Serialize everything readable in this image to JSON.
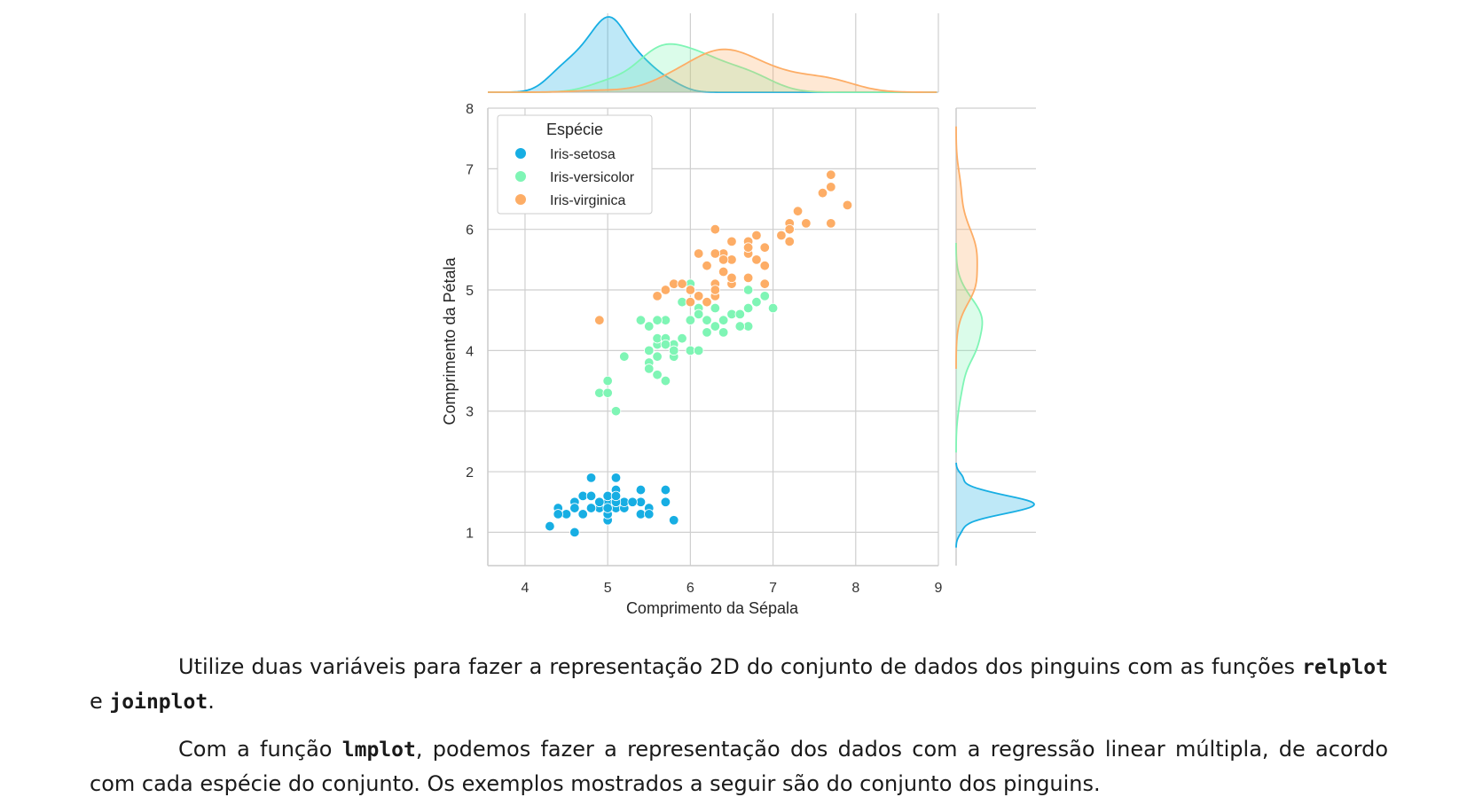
{
  "chart_data": {
    "type": "scatter",
    "subtype": "jointplot-kde",
    "xlabel": "Comprimento da Sépala",
    "ylabel": "Comprimento da Pétala",
    "xlim": [
      3.55,
      9.0
    ],
    "ylim": [
      0.45,
      8.0
    ],
    "xticks": [
      4,
      5,
      6,
      7,
      8,
      9
    ],
    "yticks": [
      1,
      2,
      3,
      4,
      5,
      6,
      7,
      8
    ],
    "grid": true,
    "legend": {
      "title": "Espécie",
      "placement": "top-left"
    },
    "marginals": "kde",
    "series": [
      {
        "name": "Iris-setosa",
        "color": "#17aee3",
        "points": [
          [
            5.1,
            1.4
          ],
          [
            4.9,
            1.4
          ],
          [
            4.7,
            1.3
          ],
          [
            4.6,
            1.5
          ],
          [
            5.0,
            1.4
          ],
          [
            5.4,
            1.7
          ],
          [
            4.6,
            1.4
          ],
          [
            5.0,
            1.5
          ],
          [
            4.4,
            1.4
          ],
          [
            4.9,
            1.5
          ],
          [
            5.4,
            1.5
          ],
          [
            4.8,
            1.6
          ],
          [
            4.8,
            1.4
          ],
          [
            4.3,
            1.1
          ],
          [
            5.8,
            1.2
          ],
          [
            5.7,
            1.5
          ],
          [
            5.4,
            1.3
          ],
          [
            5.1,
            1.4
          ],
          [
            5.7,
            1.7
          ],
          [
            5.1,
            1.5
          ],
          [
            5.4,
            1.7
          ],
          [
            5.1,
            1.5
          ],
          [
            4.6,
            1.0
          ],
          [
            5.1,
            1.7
          ],
          [
            4.8,
            1.9
          ],
          [
            5.0,
            1.6
          ],
          [
            5.0,
            1.6
          ],
          [
            5.2,
            1.5
          ],
          [
            5.2,
            1.4
          ],
          [
            4.7,
            1.6
          ],
          [
            4.8,
            1.6
          ],
          [
            5.4,
            1.5
          ],
          [
            5.2,
            1.5
          ],
          [
            5.5,
            1.4
          ],
          [
            4.9,
            1.5
          ],
          [
            5.0,
            1.2
          ],
          [
            5.5,
            1.3
          ],
          [
            4.9,
            1.5
          ],
          [
            4.4,
            1.3
          ],
          [
            5.1,
            1.5
          ],
          [
            5.0,
            1.3
          ],
          [
            4.5,
            1.3
          ],
          [
            4.4,
            1.3
          ],
          [
            5.0,
            1.6
          ],
          [
            5.1,
            1.9
          ],
          [
            4.8,
            1.4
          ],
          [
            5.1,
            1.6
          ],
          [
            4.6,
            1.4
          ],
          [
            5.3,
            1.5
          ],
          [
            5.0,
            1.4
          ]
        ]
      },
      {
        "name": "Iris-versicolor",
        "color": "#7ff5b5",
        "points": [
          [
            7.0,
            4.7
          ],
          [
            6.4,
            4.5
          ],
          [
            6.9,
            4.9
          ],
          [
            5.5,
            4.0
          ],
          [
            6.5,
            4.6
          ],
          [
            5.7,
            4.5
          ],
          [
            6.3,
            4.7
          ],
          [
            4.9,
            3.3
          ],
          [
            6.6,
            4.6
          ],
          [
            5.2,
            3.9
          ],
          [
            5.0,
            3.5
          ],
          [
            5.9,
            4.2
          ],
          [
            6.0,
            4.0
          ],
          [
            6.1,
            4.7
          ],
          [
            5.6,
            3.6
          ],
          [
            6.7,
            4.4
          ],
          [
            5.6,
            4.5
          ],
          [
            5.8,
            4.1
          ],
          [
            6.2,
            4.5
          ],
          [
            5.6,
            3.9
          ],
          [
            5.9,
            4.8
          ],
          [
            6.1,
            4.0
          ],
          [
            6.3,
            4.9
          ],
          [
            6.1,
            4.7
          ],
          [
            6.4,
            4.3
          ],
          [
            6.6,
            4.4
          ],
          [
            6.8,
            4.8
          ],
          [
            6.7,
            5.0
          ],
          [
            6.0,
            4.5
          ],
          [
            5.7,
            3.5
          ],
          [
            5.5,
            3.8
          ],
          [
            5.5,
            3.7
          ],
          [
            5.8,
            3.9
          ],
          [
            6.0,
            5.1
          ],
          [
            5.4,
            4.5
          ],
          [
            6.0,
            4.5
          ],
          [
            6.7,
            4.7
          ],
          [
            6.3,
            4.4
          ],
          [
            5.6,
            4.1
          ],
          [
            5.5,
            4.0
          ],
          [
            5.5,
            4.4
          ],
          [
            6.1,
            4.6
          ],
          [
            5.8,
            4.0
          ],
          [
            5.0,
            3.3
          ],
          [
            5.6,
            4.2
          ],
          [
            5.7,
            4.2
          ],
          [
            5.7,
            4.2
          ],
          [
            6.2,
            4.3
          ],
          [
            5.1,
            3.0
          ],
          [
            5.7,
            4.1
          ]
        ]
      },
      {
        "name": "Iris-virginica",
        "color": "#fdad66",
        "points": [
          [
            6.3,
            6.0
          ],
          [
            5.8,
            5.1
          ],
          [
            7.1,
            5.9
          ],
          [
            6.3,
            5.6
          ],
          [
            6.5,
            5.8
          ],
          [
            7.6,
            6.6
          ],
          [
            4.9,
            4.5
          ],
          [
            7.3,
            6.3
          ],
          [
            6.7,
            5.8
          ],
          [
            7.2,
            6.1
          ],
          [
            6.5,
            5.1
          ],
          [
            6.4,
            5.3
          ],
          [
            6.8,
            5.5
          ],
          [
            5.7,
            5.0
          ],
          [
            5.8,
            5.1
          ],
          [
            6.4,
            5.3
          ],
          [
            6.5,
            5.5
          ],
          [
            7.7,
            6.7
          ],
          [
            7.7,
            6.9
          ],
          [
            6.0,
            5.0
          ],
          [
            6.9,
            5.7
          ],
          [
            5.6,
            4.9
          ],
          [
            7.7,
            6.7
          ],
          [
            6.3,
            4.9
          ],
          [
            6.7,
            5.7
          ],
          [
            7.2,
            6.0
          ],
          [
            6.2,
            4.8
          ],
          [
            6.1,
            4.9
          ],
          [
            6.4,
            5.6
          ],
          [
            7.2,
            5.8
          ],
          [
            7.4,
            6.1
          ],
          [
            7.9,
            6.4
          ],
          [
            6.4,
            5.6
          ],
          [
            6.3,
            5.1
          ],
          [
            6.1,
            5.6
          ],
          [
            7.7,
            6.1
          ],
          [
            6.3,
            5.6
          ],
          [
            6.4,
            5.5
          ],
          [
            6.0,
            4.8
          ],
          [
            6.9,
            5.4
          ],
          [
            6.7,
            5.6
          ],
          [
            6.9,
            5.1
          ],
          [
            5.8,
            5.1
          ],
          [
            6.8,
            5.9
          ],
          [
            6.7,
            5.7
          ],
          [
            6.7,
            5.2
          ],
          [
            6.3,
            5.0
          ],
          [
            6.5,
            5.2
          ],
          [
            6.2,
            5.4
          ],
          [
            5.9,
            5.1
          ]
        ]
      }
    ]
  },
  "text": {
    "p1_a": "Utilize duas variáveis para fazer a representação 2D do conjunto de dados dos pinguins com as funções ",
    "p1_code1": "relplot",
    "p1_b": " e ",
    "p1_code2": "joinplot",
    "p1_c": ".",
    "p2_a": "Com a função ",
    "p2_code": "lmplot",
    "p2_b": ", podemos fazer a representação dos dados com a regressão linear múltipla, de acordo com cada espécie do conjunto. Os exemplos mostrados a seguir são do conjunto dos pinguins."
  }
}
